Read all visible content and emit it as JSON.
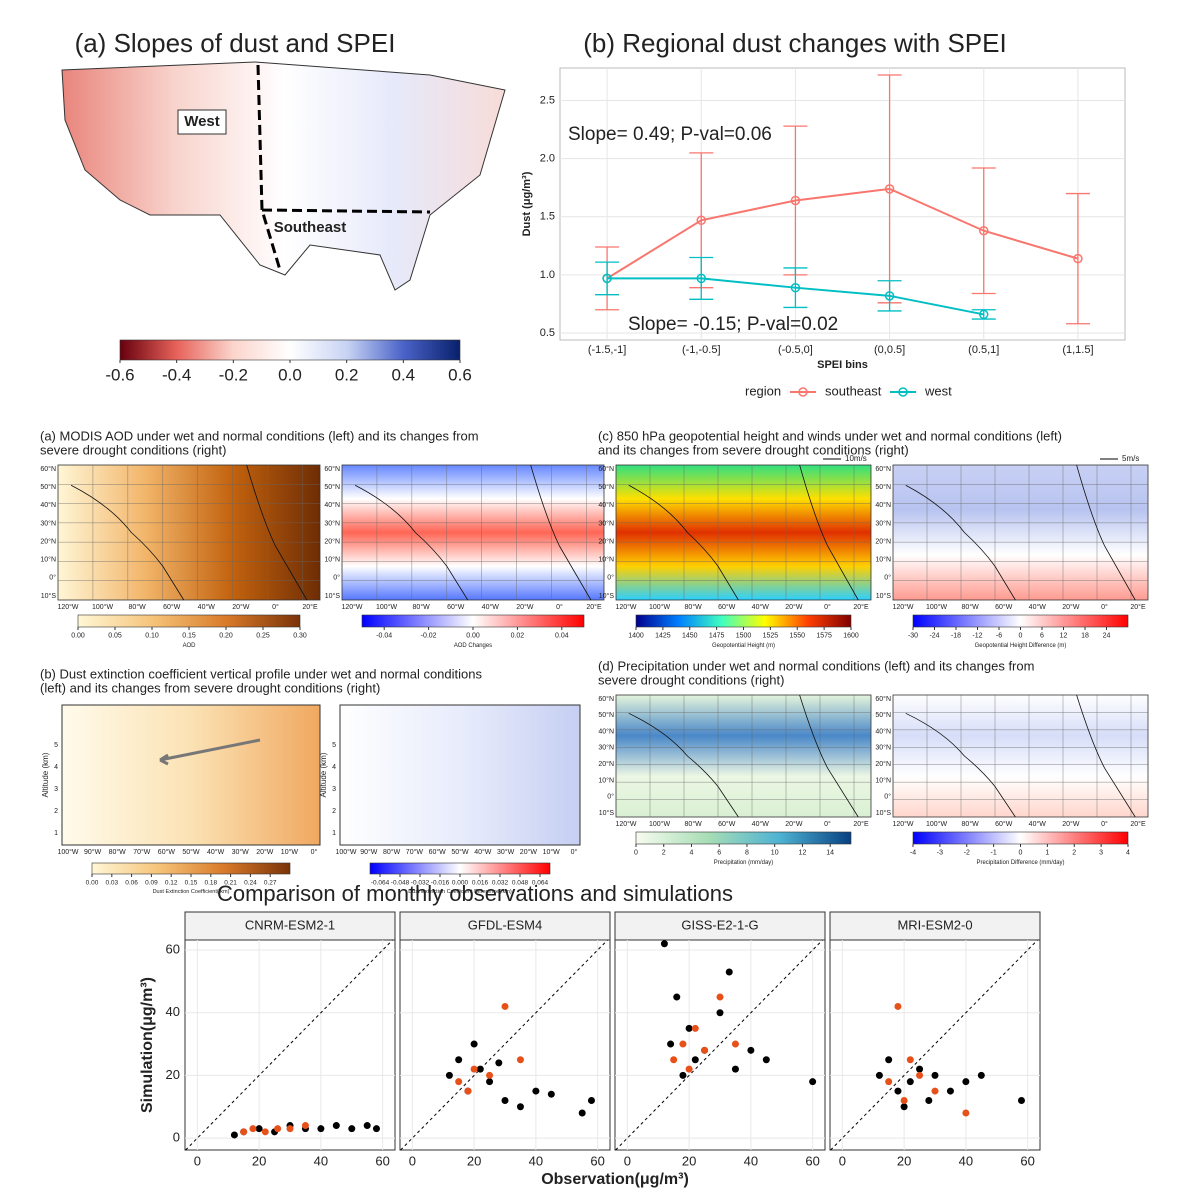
{
  "chart_data": [
    {
      "type": "map",
      "title": "(a) Slopes of dust and SPEI",
      "labels": [
        "West",
        "Southeast"
      ],
      "colorbar": {
        "clim": [
          -0.6,
          0.6
        ],
        "colors": [
          "#67000d",
          "#e7625a",
          "#fbd5cc",
          "#ffffff",
          "#c8d4f4",
          "#4a63c8",
          "#08206b"
        ],
        "ticks": [
          -0.6,
          -0.4,
          -0.2,
          {
            "value": 0,
            "label": "0.0"
          },
          0.2,
          0.4,
          0.6
        ]
      }
    },
    {
      "type": "line",
      "title": "(b) Regional dust changes with SPEI",
      "xlabel": "SPEI bins",
      "ylabel": "Dust (μg/m³)",
      "categories": [
        "(-1.5,-1]",
        "(-1,-0.5]",
        "(-0.5,0]",
        "(0,0.5]",
        "(0.5,1]",
        "(1,1.5]"
      ],
      "ylim": [
        0.44,
        2.78
      ],
      "yticks": [
        0.5,
        {
          "value": 1,
          "label": "1.0"
        },
        1.5,
        {
          "value": 2,
          "label": "2.0"
        },
        2.5
      ],
      "grid": true,
      "legend_title": "region",
      "series": [
        {
          "name": "southeast",
          "color": "#f8766d",
          "values": [
            0.97,
            1.47,
            1.64,
            1.74,
            1.38,
            1.14
          ],
          "errors": [
            0.27,
            0.58,
            0.64,
            0.98,
            0.54,
            0.56
          ]
        },
        {
          "name": "west",
          "color": "#00bfc4",
          "values": [
            0.97,
            0.97,
            0.89,
            0.82,
            0.66,
            null
          ],
          "errors": [
            0.14,
            0.18,
            0.17,
            0.13,
            0.04,
            null
          ]
        }
      ],
      "annotations": [
        "Slope= 0.49; P-val=0.06",
        "Slope= -0.15; P-val=0.02"
      ]
    },
    {
      "type": "map_pair",
      "title_lines": [
        "(a) MODIS AOD under wet and normal conditions (left) and its changes from",
        "severe drought conditions (right)"
      ],
      "lat_labels": [
        "60°N",
        "50°N",
        "40°N",
        "30°N",
        "20°N",
        "10°N",
        "0°",
        "10°S"
      ],
      "lon_labels": [
        "120°W",
        "100°W",
        "80°W",
        "60°W",
        "40°W",
        "20°W",
        "0°",
        "20°E"
      ],
      "maps": [
        {
          "colorbar": {
            "label": "AOD",
            "clim": [
              0,
              0.3
            ],
            "colors": [
              "#fff7d6",
              "#f6c47a",
              "#d97a2a",
              "#7a3308"
            ],
            "ticks": [
              {
                "value": 0,
                "label": "0.00"
              },
              {
                "value": 0.05,
                "label": "0.05"
              },
              {
                "value": 0.1,
                "label": "0.10"
              },
              {
                "value": 0.15,
                "label": "0.15"
              },
              {
                "value": 0.2,
                "label": "0.20"
              },
              {
                "value": 0.25,
                "label": "0.25"
              },
              {
                "value": 0.3,
                "label": "0.30"
              }
            ]
          }
        },
        {
          "colorbar": {
            "label": "AOD Changes",
            "clim": [
              -0.05,
              0.05
            ],
            "colors": [
              "#0000ff",
              "#ffffff",
              "#ff0000"
            ],
            "ticks": [
              -0.04,
              -0.02,
              {
                "value": 0,
                "label": "0.00"
              },
              0.02,
              0.04
            ]
          }
        }
      ]
    },
    {
      "type": "map_pair",
      "title_lines": [
        "(c) 850 hPa geopotential height and winds under wet and normal conditions (left)",
        "and its changes from severe drought conditions (right)"
      ],
      "arrows": [
        "10m/s",
        "5m/s"
      ],
      "lat_labels": [
        "60°N",
        "50°N",
        "40°N",
        "30°N",
        "20°N",
        "10°N",
        "0°",
        "10°S"
      ],
      "lon_labels": [
        "120°W",
        "100°W",
        "80°W",
        "60°W",
        "40°W",
        "20°W",
        "0°",
        "20°E"
      ],
      "maps": [
        {
          "colorbar": {
            "label": "Geopotential Height (m)",
            "clim": [
              1400,
              1600
            ],
            "colors": [
              "#00008f",
              "#0080ff",
              "#40ffbf",
              "#ffff00",
              "#ff4000",
              "#800000"
            ],
            "ticks": [
              1400,
              1425,
              1450,
              1475,
              1500,
              1525,
              1550,
              1575,
              1600
            ]
          }
        },
        {
          "colorbar": {
            "label": "Geopotential Height Difference (m)",
            "clim": [
              -30,
              30
            ],
            "colors": [
              "#0000ff",
              "#ffffff",
              "#ff0000"
            ],
            "ticks": [
              -30,
              -24,
              -18,
              -12,
              -6,
              0,
              6,
              12,
              18,
              24
            ]
          }
        }
      ]
    },
    {
      "type": "profile_pair",
      "title_lines": [
        "(b) Dust extinction coefficient vertical profile under wet and normal conditions",
        "(left) and its changes from severe drought conditions (right)"
      ],
      "ylabel": "Altitude (km)",
      "alt_labels": [
        1,
        2,
        3,
        4,
        5
      ],
      "lon_labels": [
        "100°W",
        "90°W",
        "80°W",
        "70°W",
        "60°W",
        "50°W",
        "40°W",
        "30°W",
        "20°W",
        "10°W",
        "0°"
      ],
      "maps": [
        {
          "colorbar": {
            "label": "Dust Extinction Coefficient(/km)",
            "clim": [
              0,
              0.3
            ],
            "colors": [
              "#fff7d6",
              "#f6c47a",
              "#d97a2a",
              "#7a3308"
            ],
            "ticks": [
              {
                "value": 0,
                "label": "0.00"
              },
              {
                "value": 0.03,
                "label": "0.03"
              },
              {
                "value": 0.06,
                "label": "0.06"
              },
              {
                "value": 0.09,
                "label": "0.09"
              },
              {
                "value": 0.12,
                "label": "0.12"
              },
              {
                "value": 0.15,
                "label": "0.15"
              },
              {
                "value": 0.18,
                "label": "0.18"
              },
              {
                "value": 0.21,
                "label": "0.21"
              },
              {
                "value": 0.24,
                "label": "0.24"
              },
              {
                "value": 0.27,
                "label": "0.27"
              }
            ]
          }
        },
        {
          "colorbar": {
            "label": "Dust Extinction Coefficient Difference(/km)",
            "clim": [
              -0.072,
              0.072
            ],
            "colors": [
              "#0000ff",
              "#ffffff",
              "#ff0000"
            ],
            "ticks": [
              -0.064,
              -0.048,
              -0.032,
              -0.016,
              {
                "value": 0,
                "label": "0.000"
              },
              0.016,
              0.032,
              0.048,
              0.064
            ]
          }
        }
      ]
    },
    {
      "type": "map_pair",
      "title_lines": [
        "(d) Precipitation under wet and normal conditions (left) and its changes from",
        "severe drought conditions (right)"
      ],
      "lat_labels": [
        "60°N",
        "50°N",
        "40°N",
        "30°N",
        "20°N",
        "10°N",
        "0°",
        "10°S"
      ],
      "lon_labels": [
        "120°W",
        "100°W",
        "80°W",
        "60°W",
        "40°W",
        "20°W",
        "0°",
        "20°E"
      ],
      "maps": [
        {
          "colorbar": {
            "label": "Precipitation (mm/day)",
            "clim": [
              0,
              15.5
            ],
            "colors": [
              "#f7fcf0",
              "#a8ddb5",
              "#4eb3d3",
              "#084081"
            ],
            "ticks": [
              0,
              2,
              4,
              6,
              8,
              10,
              12,
              14
            ]
          }
        },
        {
          "colorbar": {
            "label": "Precipitation Difference (mm/day)",
            "clim": [
              -4,
              4
            ],
            "colors": [
              "#0000ff",
              "#ffffff",
              "#ff0000"
            ],
            "ticks": [
              -4,
              -3,
              -2,
              -1,
              0,
              1,
              2,
              3,
              4
            ]
          }
        }
      ]
    },
    {
      "type": "facet_scatter",
      "title": "Comparison of monthly observations and simulations",
      "xlabel": "Observation(μg/m³)",
      "ylabel": "Simulation(μg/m³)",
      "xlim": [
        -4,
        64
      ],
      "ylim": [
        -3.8,
        63.2
      ],
      "xticks": [
        0,
        20,
        40,
        60
      ],
      "yticks": [
        0,
        20,
        40,
        60
      ],
      "panels": [
        {
          "name": "CNRM-ESM2-1",
          "series": [
            {
              "color": "#000000",
              "x": [
                12,
                15,
                20,
                25,
                30,
                35,
                40,
                45,
                50,
                55,
                58
              ],
              "values": [
                1,
                2,
                3,
                2,
                4,
                3,
                3,
                4,
                3,
                4,
                3
              ]
            },
            {
              "color": "#e8501a",
              "x": [
                15,
                18,
                22,
                26,
                30,
                35
              ],
              "values": [
                2,
                3,
                2,
                3,
                3,
                4
              ]
            }
          ]
        },
        {
          "name": "GFDL-ESM4",
          "series": [
            {
              "color": "#000000",
              "x": [
                12,
                15,
                18,
                20,
                22,
                25,
                28,
                30,
                35,
                40,
                45,
                55,
                58
              ],
              "values": [
                20,
                25,
                15,
                30,
                22,
                18,
                24,
                12,
                10,
                15,
                14,
                8,
                12
              ]
            },
            {
              "color": "#e8501a",
              "x": [
                15,
                18,
                20,
                25,
                30,
                35
              ],
              "values": [
                18,
                15,
                22,
                20,
                42,
                25
              ]
            }
          ]
        },
        {
          "name": "GISS-E2-1-G",
          "series": [
            {
              "color": "#000000",
              "x": [
                12,
                14,
                16,
                18,
                20,
                22,
                25,
                30,
                33,
                35,
                40,
                45,
                60
              ],
              "values": [
                62,
                30,
                45,
                20,
                35,
                25,
                28,
                40,
                53,
                22,
                28,
                25,
                18
              ]
            },
            {
              "color": "#e8501a",
              "x": [
                15,
                18,
                20,
                22,
                25,
                30,
                35
              ],
              "values": [
                25,
                30,
                22,
                35,
                28,
                45,
                30
              ]
            }
          ]
        },
        {
          "name": "MRI-ESM2-0",
          "series": [
            {
              "color": "#000000",
              "x": [
                12,
                15,
                18,
                20,
                22,
                25,
                28,
                30,
                35,
                40,
                45,
                58
              ],
              "values": [
                20,
                25,
                15,
                10,
                18,
                22,
                12,
                20,
                15,
                18,
                20,
                12
              ]
            },
            {
              "color": "#e8501a",
              "x": [
                15,
                18,
                20,
                22,
                25,
                30,
                40
              ],
              "values": [
                18,
                42,
                12,
                25,
                20,
                15,
                8
              ]
            }
          ]
        }
      ]
    }
  ]
}
